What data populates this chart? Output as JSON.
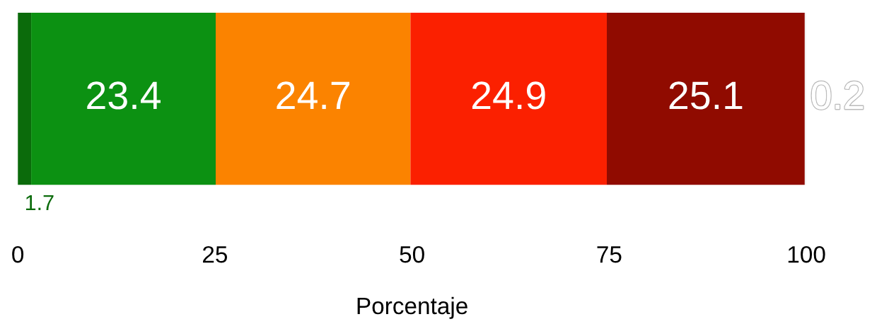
{
  "chart_data": {
    "type": "bar",
    "orientation": "horizontal",
    "stacked": true,
    "categories": [
      null
    ],
    "xlabel": "Porcentaje",
    "series": [
      {
        "color": "#0b6b0b",
        "values": [
          1.7
        ]
      },
      {
        "color": "#0c9112",
        "values": [
          23.4
        ]
      },
      {
        "color": "#fb8300",
        "values": [
          24.7
        ]
      },
      {
        "color": "#fb2000",
        "values": [
          24.9
        ]
      },
      {
        "color": "#900b00",
        "values": [
          25.1
        ]
      },
      {
        "color": "#f2f2f2",
        "values": [
          0.2
        ]
      }
    ],
    "xlim": [
      0,
      100
    ],
    "xticks": [
      0,
      25,
      50,
      75,
      100
    ],
    "data_labels": true,
    "grid": false,
    "legend": false
  }
}
